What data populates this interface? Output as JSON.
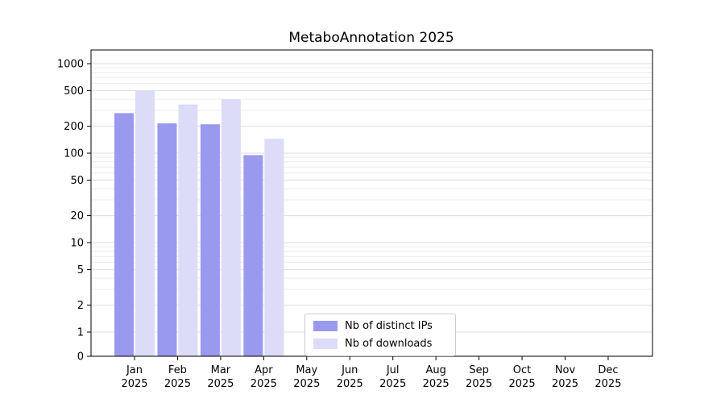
{
  "chart_data": {
    "type": "bar",
    "title": "MetaboAnnotation 2025",
    "x_year": "2025",
    "categories": [
      "Jan",
      "Feb",
      "Mar",
      "Apr",
      "May",
      "Jun",
      "Jul",
      "Aug",
      "Sep",
      "Oct",
      "Nov",
      "Dec"
    ],
    "series": [
      {
        "name": "Nb of distinct IPs",
        "color": "#9999ee",
        "values": [
          280,
          215,
          210,
          95,
          null,
          null,
          null,
          null,
          null,
          null,
          null,
          null
        ]
      },
      {
        "name": "Nb of downloads",
        "color": "#dcdcf8",
        "values": [
          500,
          350,
          400,
          145,
          null,
          null,
          null,
          null,
          null,
          null,
          null,
          null
        ]
      }
    ],
    "yscale": "symlog (log above 1, linear 0-1)",
    "y_ticks": [
      0,
      1,
      2,
      5,
      10,
      20,
      50,
      100,
      200,
      500,
      1000
    ],
    "ylim": [
      0,
      1400
    ],
    "grid": "horizontal log minor gridlines",
    "legend_position": "inside-bottom-center",
    "colors": {
      "grid_major": "#dddddd",
      "grid_minor": "#ececec",
      "axis": "#000000",
      "background": "#ffffff"
    }
  }
}
